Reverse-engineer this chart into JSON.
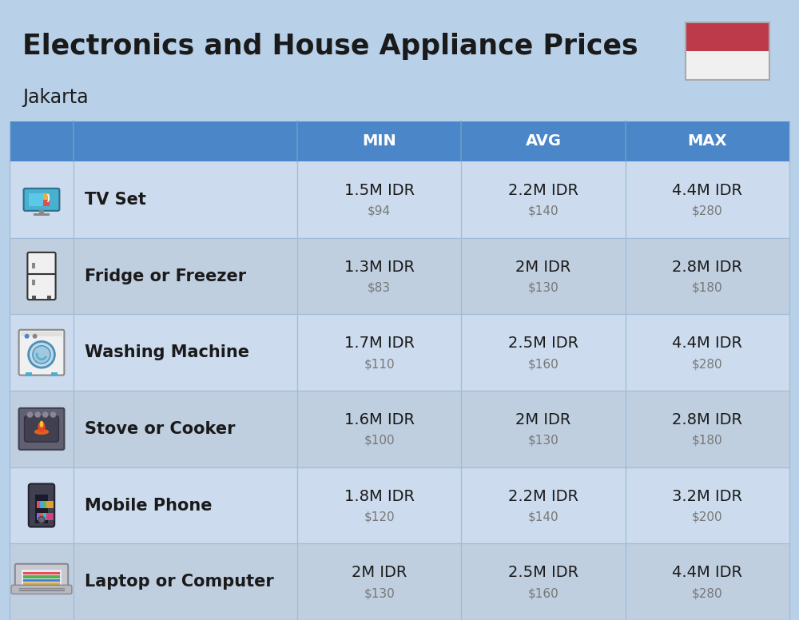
{
  "title": "Electronics and House Appliance Prices",
  "subtitle": "Jakarta",
  "bg_color": "#b8d0e8",
  "header_color": "#4a86c8",
  "header_text_color": "#ffffff",
  "row_bg_light": "#ccdcee",
  "row_bg_medium": "#bfcfe0",
  "flag_red": "#bc3a4a",
  "flag_white": "#f0f0f0",
  "columns": [
    "MIN",
    "AVG",
    "MAX"
  ],
  "rows": [
    {
      "name": "TV Set",
      "icon": "tv",
      "min_idr": "1.5M IDR",
      "min_usd": "$94",
      "avg_idr": "2.2M IDR",
      "avg_usd": "$140",
      "max_idr": "4.4M IDR",
      "max_usd": "$280"
    },
    {
      "name": "Fridge or Freezer",
      "icon": "fridge",
      "min_idr": "1.3M IDR",
      "min_usd": "$83",
      "avg_idr": "2M IDR",
      "avg_usd": "$130",
      "max_idr": "2.8M IDR",
      "max_usd": "$180"
    },
    {
      "name": "Washing Machine",
      "icon": "washing",
      "min_idr": "1.7M IDR",
      "min_usd": "$110",
      "avg_idr": "2.5M IDR",
      "avg_usd": "$160",
      "max_idr": "4.4M IDR",
      "max_usd": "$280"
    },
    {
      "name": "Stove or Cooker",
      "icon": "stove",
      "min_idr": "1.6M IDR",
      "min_usd": "$100",
      "avg_idr": "2M IDR",
      "avg_usd": "$130",
      "max_idr": "2.8M IDR",
      "max_usd": "$180"
    },
    {
      "name": "Mobile Phone",
      "icon": "phone",
      "min_idr": "1.8M IDR",
      "min_usd": "$120",
      "avg_idr": "2.2M IDR",
      "avg_usd": "$140",
      "max_idr": "3.2M IDR",
      "max_usd": "$200"
    },
    {
      "name": "Laptop or Computer",
      "icon": "laptop",
      "min_idr": "2M IDR",
      "min_usd": "$130",
      "avg_idr": "2.5M IDR",
      "avg_usd": "$160",
      "max_idr": "4.4M IDR",
      "max_usd": "$280"
    }
  ],
  "idr_fontsize": 14,
  "usd_fontsize": 11,
  "item_fontsize": 15,
  "header_fontsize": 14,
  "title_fontsize": 25,
  "subtitle_fontsize": 17
}
